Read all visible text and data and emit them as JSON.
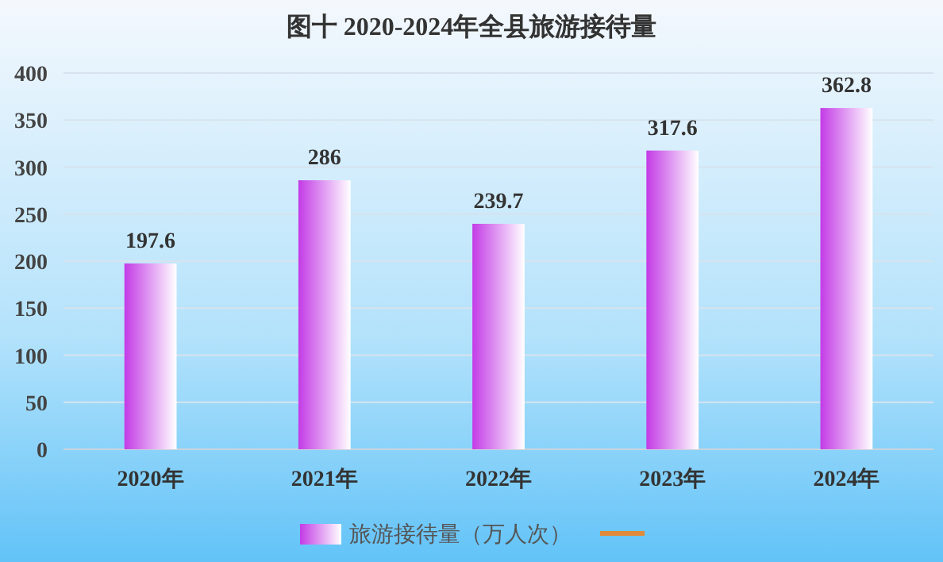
{
  "chart_data": {
    "type": "bar",
    "title": "图十  2020-2024年全县旅游接待量",
    "categories": [
      "2020年",
      "2021年",
      "2022年",
      "2023年",
      "2024年"
    ],
    "series": [
      {
        "name": "旅游接待量（万人次）",
        "color": "#c33be6",
        "values": [
          197.6,
          286,
          239.7,
          317.6,
          362.8
        ]
      }
    ],
    "ylim": [
      0,
      400
    ],
    "yticks": [
      0,
      50,
      100,
      150,
      200,
      250,
      300,
      350,
      400
    ],
    "grid": "y",
    "data_labels": true,
    "legend": "bottom"
  }
}
